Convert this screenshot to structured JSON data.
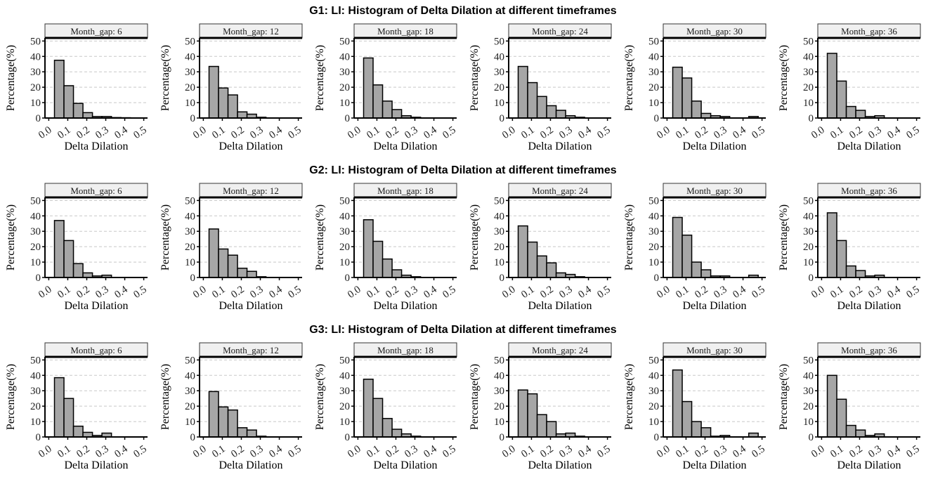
{
  "colors": {
    "bar_fill": "#a6a6a6",
    "bar_stroke": "#000000",
    "strip_fill": "#f0f0f0",
    "grid": "#c8c8c8",
    "background": "#ffffff"
  },
  "chart_data": {
    "type": "bar",
    "layout": "facet grid: 3 rows x 6 columns",
    "grid": "dashed horizontal major gridlines",
    "x": {
      "label": "Delta Dilation",
      "range": [
        0.0,
        0.5
      ],
      "ticks": [
        "0.0",
        "0.1",
        "0.2",
        "0.3",
        "0.4",
        "0.5"
      ],
      "bin_width": 0.05,
      "bin_starts": [
        0.03,
        0.08,
        0.13,
        0.18,
        0.23,
        0.28,
        0.33,
        0.38,
        0.43
      ]
    },
    "y": {
      "label": "Percentage(%)",
      "range": [
        0,
        52
      ],
      "ticks": [
        "0",
        "10",
        "20",
        "30",
        "40",
        "50"
      ]
    },
    "groups": [
      {
        "title": "G1: LI: Histogram of Delta Dilation at different timeframes",
        "panels": [
          {
            "strip": "Month_gap: 6",
            "values": [
              37.5,
              21,
              9.5,
              3.5,
              1,
              1,
              0.3,
              0.2,
              0
            ]
          },
          {
            "strip": "Month_gap: 12",
            "values": [
              33.5,
              19.5,
              15,
              4,
              2.5,
              0.5,
              0,
              0,
              0
            ]
          },
          {
            "strip": "Month_gap: 18",
            "values": [
              39,
              21.5,
              11,
              5.5,
              1.5,
              0.5,
              0,
              0,
              0
            ]
          },
          {
            "strip": "Month_gap: 24",
            "values": [
              33.5,
              23,
              14,
              8,
              5,
              1.5,
              0.5,
              0,
              0
            ]
          },
          {
            "strip": "Month_gap: 30",
            "values": [
              33,
              26,
              11,
              3,
              1.5,
              1,
              0,
              0,
              1
            ]
          },
          {
            "strip": "Month_gap: 36",
            "values": [
              42,
              24,
              7.5,
              5,
              1,
              1.5,
              0,
              0,
              0
            ]
          }
        ]
      },
      {
        "title": "G2: LI: Histogram of Delta Dilation at different timeframes",
        "panels": [
          {
            "strip": "Month_gap: 6",
            "values": [
              37,
              24,
              9,
              3,
              1,
              1.5,
              0,
              0,
              0
            ]
          },
          {
            "strip": "Month_gap: 12",
            "values": [
              31.5,
              18.5,
              14.5,
              6,
              4,
              0.5,
              0,
              0,
              0
            ]
          },
          {
            "strip": "Month_gap: 18",
            "values": [
              37.5,
              23.5,
              12,
              5,
              1.5,
              0.5,
              0,
              0,
              0
            ]
          },
          {
            "strip": "Month_gap: 24",
            "values": [
              33.5,
              23,
              14,
              9.5,
              3,
              2,
              0.5,
              0,
              0
            ]
          },
          {
            "strip": "Month_gap: 30",
            "values": [
              39,
              27.5,
              10,
              5,
              1,
              1,
              0,
              0,
              1.5
            ]
          },
          {
            "strip": "Month_gap: 36",
            "values": [
              42,
              24,
              7.5,
              4.5,
              1,
              1.5,
              0,
              0,
              0
            ]
          }
        ]
      },
      {
        "title": "G3: LI: Histogram of Delta Dilation at different timeframes",
        "panels": [
          {
            "strip": "Month_gap: 6",
            "values": [
              38.5,
              25,
              7,
              3,
              1,
              2.5,
              0,
              0,
              0
            ]
          },
          {
            "strip": "Month_gap: 12",
            "values": [
              29.5,
              19.5,
              17.5,
              6,
              4.5,
              0.5,
              0,
              0,
              0
            ]
          },
          {
            "strip": "Month_gap: 18",
            "values": [
              37.5,
              25,
              12,
              5,
              2,
              0.5,
              0,
              0,
              0
            ]
          },
          {
            "strip": "Month_gap: 24",
            "values": [
              30.5,
              28,
              14.5,
              10,
              2,
              2.5,
              0.5,
              0,
              0
            ]
          },
          {
            "strip": "Month_gap: 30",
            "values": [
              43.5,
              23,
              10,
              6,
              0.5,
              1,
              0,
              0,
              2.5
            ]
          },
          {
            "strip": "Month_gap: 36",
            "values": [
              40,
              24.5,
              7.5,
              4.5,
              1,
              2,
              0,
              0,
              0
            ]
          }
        ]
      }
    ]
  }
}
